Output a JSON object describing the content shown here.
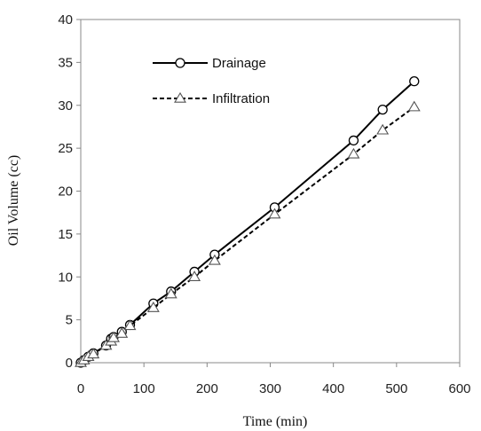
{
  "chart_data": {
    "type": "line",
    "title": "",
    "xlabel": "Time (min)",
    "ylabel": "Oil Volume (cc)",
    "xlim": [
      0,
      600
    ],
    "ylim": [
      0,
      40
    ],
    "xticks": [
      0,
      100,
      200,
      300,
      400,
      500,
      600
    ],
    "yticks": [
      0,
      5,
      10,
      15,
      20,
      25,
      30,
      35,
      40
    ],
    "grid": false,
    "legend": "top-center",
    "series": [
      {
        "name": "Drainage",
        "line_style": "solid",
        "marker": "circle",
        "color": "#000000",
        "x": [
          0,
          5,
          12,
          20,
          40,
          48,
          52,
          65,
          78,
          115,
          143,
          180,
          212,
          307,
          432,
          478,
          528
        ],
        "y": [
          0,
          0.3,
          0.7,
          1.1,
          2.0,
          2.8,
          3.0,
          3.6,
          4.4,
          6.9,
          8.3,
          10.6,
          12.6,
          18.1,
          25.9,
          29.5,
          32.8
        ]
      },
      {
        "name": "Infiltration",
        "line_style": "dashed",
        "marker": "triangle",
        "color": "#000000",
        "x": [
          0,
          5,
          12,
          20,
          40,
          48,
          52,
          65,
          78,
          115,
          143,
          180,
          212,
          307,
          432,
          478,
          528
        ],
        "y": [
          0,
          0.3,
          0.7,
          1.0,
          2.0,
          2.5,
          2.9,
          3.4,
          4.3,
          6.4,
          8.0,
          10.0,
          11.9,
          17.3,
          24.3,
          27.1,
          29.8
        ]
      }
    ]
  }
}
